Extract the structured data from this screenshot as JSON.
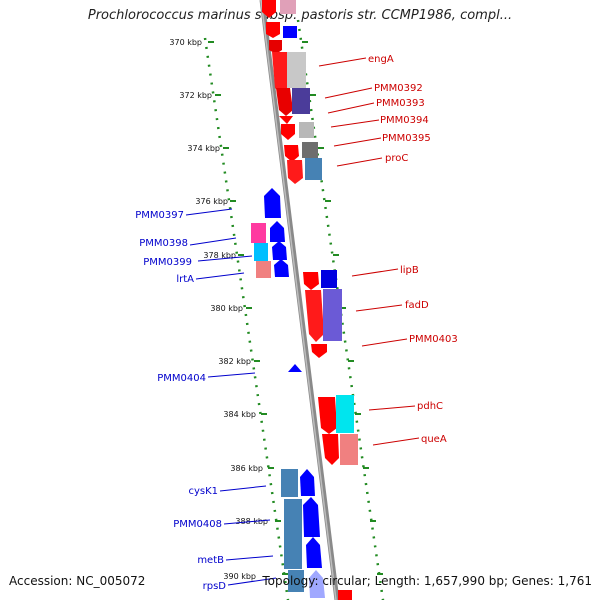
{
  "title": "Prochlorococcus marinus subsp. pastoris str. CCMP1986, compl...",
  "footer": {
    "accession": "Accession: NC_005072",
    "info": "Topology: circular; Length: 1,657,990 bp; Genes: 1,761"
  },
  "colors": {
    "backbone": "#8a8a8a",
    "ruler": "#228b22",
    "forward_label": "#cc0000",
    "reverse_label": "#0000cc"
  },
  "kbp_ticks": [
    "370 kbp",
    "372 kbp",
    "374 kbp",
    "376 kbp",
    "378 kbp",
    "380 kbp",
    "382 kbp",
    "384 kbp",
    "386 kbp",
    "388 kbp",
    "390 kbp"
  ],
  "right_labels": [
    "engA",
    "PMM0392",
    "PMM0393",
    "PMM0394",
    "PMM0395",
    "proC",
    "lipB",
    "fadD",
    "PMM0403",
    "pdhC",
    "queA"
  ],
  "left_labels": [
    "PMM0397",
    "PMM0398",
    "PMM0399",
    "lrtA",
    "PMM0404",
    "cysK1",
    "PMM0408",
    "metB",
    "rpsD"
  ]
}
